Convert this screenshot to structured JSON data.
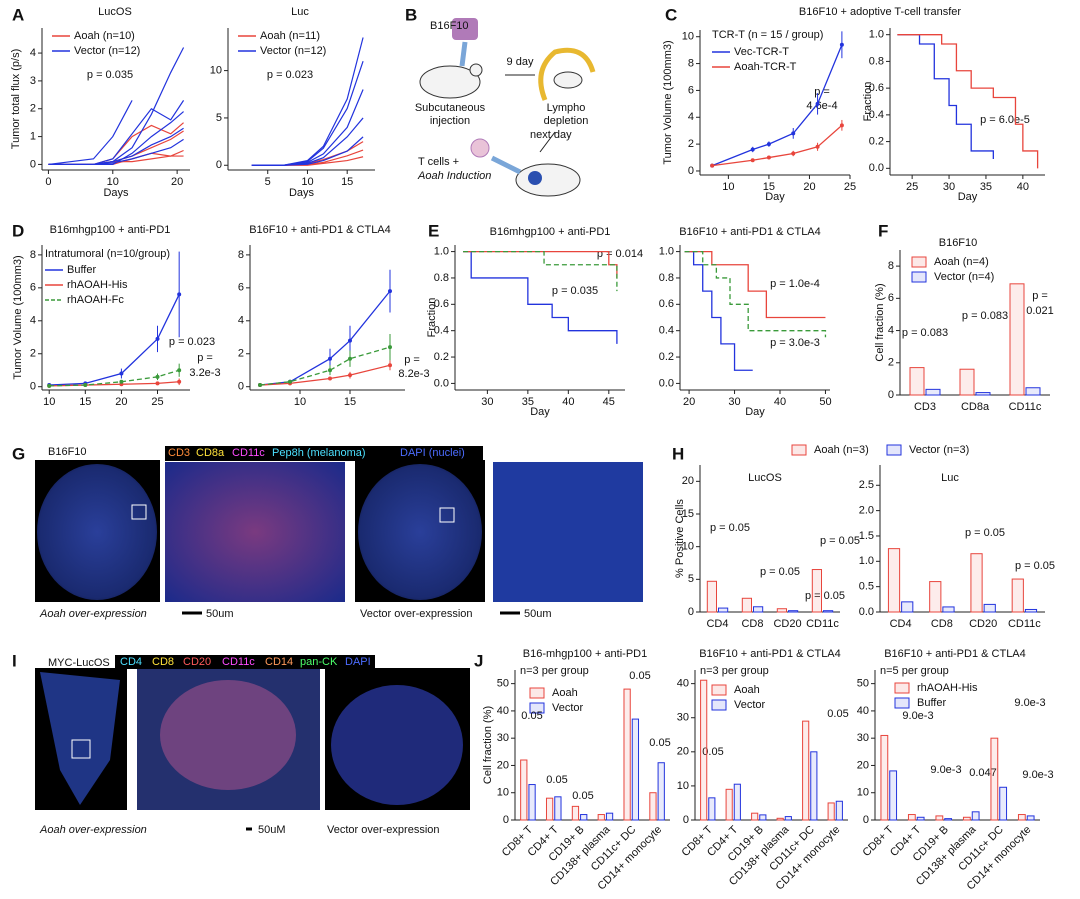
{
  "panel_letters": [
    "A",
    "B",
    "C",
    "D",
    "E",
    "F",
    "G",
    "H",
    "I",
    "J"
  ],
  "diagram_b": {
    "cell_line": "B16F10",
    "interval": "9 day",
    "step1": [
      "Subcutaneous",
      "injection"
    ],
    "step2": [
      "Lympho",
      "depletion"
    ],
    "next": "next day",
    "step3": [
      "T cells +",
      "Aoah Induction"
    ]
  },
  "image_g": {
    "title": "B16F10",
    "channels": [
      "CD3",
      "CD8a",
      "CD11c",
      "Pep8h (melanoma)",
      "DAPI (nuclei)"
    ],
    "left_caption": "Aoah over-expression",
    "left_scale": "50um",
    "right_caption": "Vector over-expression",
    "right_scale": "50um"
  },
  "image_i": {
    "title": "MYC-LucOS",
    "channels": [
      "CD4",
      "CD8",
      "CD20",
      "CD11c",
      "CD14",
      "pan-CK",
      "DAPI"
    ],
    "left_caption": "Aoah over-expression",
    "scale": "50uM",
    "right_caption": "Vector over-expression"
  },
  "chart_data": [
    {
      "type": "line",
      "title": "LucOS",
      "ylabel": "Tumor total flux (p/s)",
      "xlabel": "Days",
      "x": [
        0,
        7,
        10,
        13,
        16,
        19,
        21
      ],
      "xlim": [
        -1,
        22
      ],
      "xticks": [
        0,
        10,
        20
      ],
      "ylim": [
        -0.2,
        4.9
      ],
      "yticks": [
        0,
        1,
        2,
        3,
        4
      ],
      "legend": [
        {
          "name": "Aoah (n=10)",
          "color": "#e8453c"
        },
        {
          "name": "Vector (n=12)",
          "color": "#2233dd"
        }
      ],
      "lines": [
        {
          "color": "#e8453c",
          "values": [
            0,
            0,
            0.2,
            1.0,
            1.4,
            1.1,
            1.5
          ]
        },
        {
          "color": "#e8453c",
          "values": [
            0,
            0,
            0.1,
            0.3,
            0.6,
            0.9,
            1.2
          ]
        },
        {
          "color": "#e8453c",
          "values": [
            0,
            0,
            0,
            0.2,
            0.4,
            0.3,
            0.5
          ]
        },
        {
          "color": "#e8453c",
          "values": [
            0,
            0,
            0.1,
            0.1,
            0.2,
            0.3,
            0.3
          ]
        },
        {
          "color": "#2233dd",
          "values": [
            0,
            0,
            0.1,
            0.6,
            1.8,
            3.3,
            4.2
          ]
        },
        {
          "color": "#2233dd",
          "values": [
            0,
            0,
            0.2,
            1.1,
            2.0,
            1.6,
            2.3
          ]
        },
        {
          "color": "#2233dd",
          "values": [
            0,
            0.2,
            1.0,
            2.3,
            null,
            null,
            null
          ]
        },
        {
          "color": "#2233dd",
          "values": [
            0,
            0,
            0,
            0.4,
            1.0,
            1.5,
            1.9
          ]
        },
        {
          "color": "#2233dd",
          "values": [
            0,
            0,
            0.1,
            0.3,
            0.7,
            1.0,
            1.3
          ]
        },
        {
          "color": "#2233dd",
          "values": [
            0,
            0,
            0.05,
            0.2,
            0.4,
            0.6,
            0.9
          ]
        }
      ],
      "annotations": [
        "p = 0.035"
      ]
    },
    {
      "type": "line",
      "title": "Luc",
      "xlabel": "Days",
      "x": [
        3,
        7,
        10,
        12,
        15,
        17
      ],
      "xlim": [
        0,
        18.5
      ],
      "xticks": [
        5,
        10,
        15
      ],
      "ylim": [
        -0.5,
        14.5
      ],
      "yticks": [
        0,
        5,
        10
      ],
      "legend": [
        {
          "name": "Aoah (n=11)",
          "color": "#e8453c"
        },
        {
          "name": "Vector (n=12)",
          "color": "#2233dd"
        }
      ],
      "lines": [
        {
          "color": "#e8453c",
          "values": [
            0,
            0,
            0.2,
            0.6,
            1.5,
            2.5
          ]
        },
        {
          "color": "#e8453c",
          "values": [
            0,
            0,
            0.1,
            0.3,
            1.0,
            1.6
          ]
        },
        {
          "color": "#e8453c",
          "values": [
            0,
            0,
            0,
            0.2,
            0.5,
            0.9
          ]
        },
        {
          "color": "#2233dd",
          "values": [
            0,
            0,
            0.5,
            2,
            7,
            13.5
          ]
        },
        {
          "color": "#2233dd",
          "values": [
            0,
            0,
            0.4,
            1.8,
            6,
            11
          ]
        },
        {
          "color": "#2233dd",
          "values": [
            0,
            0,
            0.3,
            1.2,
            4,
            8
          ]
        },
        {
          "color": "#2233dd",
          "values": [
            0,
            0,
            0.2,
            0.8,
            3,
            5
          ]
        },
        {
          "color": "#2233dd",
          "values": [
            0,
            0,
            0.1,
            0.5,
            1.5,
            3
          ]
        }
      ],
      "annotations": [
        "p = 0.023"
      ]
    },
    {
      "type": "line",
      "title": "B16F10 + adoptive T-cell transfer",
      "subtitle": "TCR-T (n = 15 / group)",
      "ylabel": "Tumor Volume (100mm3)",
      "xlabel": "Day",
      "x": [
        8,
        13,
        15,
        18,
        21,
        24
      ],
      "xlim": [
        6.5,
        25
      ],
      "xticks": [
        10,
        15,
        20,
        25
      ],
      "ylim": [
        -0.3,
        10.5
      ],
      "yticks": [
        0,
        2,
        4,
        6,
        8,
        10
      ],
      "series": [
        {
          "name": "Vec-TCR-T",
          "color": "#2233dd",
          "values": [
            0.4,
            1.6,
            2.0,
            2.8,
            5.0,
            9.4
          ],
          "errors": [
            0.1,
            0.2,
            0.2,
            0.4,
            0.8,
            1.0
          ]
        },
        {
          "name": "Aoah-TCR-T",
          "color": "#e8453c",
          "values": [
            0.4,
            0.8,
            1.0,
            1.3,
            1.8,
            3.4
          ],
          "errors": [
            0.05,
            0.1,
            0.1,
            0.2,
            0.3,
            0.4
          ]
        }
      ],
      "annotations": [
        "p =",
        "4.6e-4"
      ]
    },
    {
      "type": "step",
      "ylabel": "Fraction",
      "xlabel": "Day",
      "xlim": [
        22,
        43
      ],
      "xticks": [
        25,
        30,
        35,
        40
      ],
      "ylim": [
        -0.05,
        1.05
      ],
      "yticks": [
        {
          "value": 0,
          "label": "0.0"
        },
        0.2,
        0.4,
        0.6,
        0.8,
        {
          "value": 1,
          "label": "1.0"
        }
      ],
      "series": [
        {
          "color": "#2233dd",
          "x": [
            23,
            26,
            28,
            30,
            31,
            33,
            36
          ],
          "values": [
            1,
            0.93,
            0.67,
            0.47,
            0.33,
            0.13,
            0.07
          ]
        },
        {
          "color": "#e8453c",
          "x": [
            23,
            28,
            29,
            31,
            33,
            36,
            39,
            40,
            42
          ],
          "values": [
            1,
            1,
            0.93,
            0.73,
            0.6,
            0.53,
            0.33,
            0.13,
            0
          ]
        }
      ],
      "annotations": [
        "p = 6.0e-5"
      ]
    },
    {
      "type": "line",
      "title": "B16mhgp100 + anti-PD1",
      "subtitle": "Intratumoral (n=10/group)",
      "ylabel": "Tumor Volume (100mm3)",
      "x": [
        10,
        15,
        20,
        25,
        28
      ],
      "xlim": [
        9,
        29.5
      ],
      "xticks": [
        10,
        15,
        20,
        25
      ],
      "ylim": [
        -0.2,
        8.6
      ],
      "yticks": [
        0,
        2,
        4,
        6,
        8
      ],
      "series": [
        {
          "name": "Buffer",
          "color": "#2233dd",
          "values": [
            0.1,
            0.2,
            0.8,
            2.9,
            5.6
          ],
          "errors": [
            0.05,
            0.1,
            0.3,
            0.8,
            2.6
          ]
        },
        {
          "name": "rhAOAH-His",
          "color": "#e8453c",
          "values": [
            0.05,
            0.1,
            0.15,
            0.2,
            0.3
          ],
          "errors": [
            0.02,
            0.05,
            0.05,
            0.1,
            0.2
          ]
        },
        {
          "name": "rhAOAH-Fc",
          "color": "#3a9a3a",
          "dash": true,
          "values": [
            0.05,
            0.1,
            0.3,
            0.6,
            1.0
          ],
          "errors": [
            0.02,
            0.05,
            0.1,
            0.2,
            0.4
          ]
        }
      ],
      "annotations": [
        "p = 0.023",
        "p =",
        "3.2e-3"
      ]
    },
    {
      "type": "line",
      "title": "B16F10 + anti-PD1 & CTLA4",
      "x": [
        6,
        9,
        13,
        15,
        19
      ],
      "xlim": [
        5,
        20.5
      ],
      "xticks": [
        10,
        15
      ],
      "ylim": [
        -0.2,
        8.6
      ],
      "yticks": [
        0,
        2,
        4,
        6,
        8
      ],
      "series": [
        {
          "color": "#2233dd",
          "values": [
            0.1,
            0.3,
            1.7,
            2.8,
            5.8
          ],
          "errors": [
            0.05,
            0.1,
            0.6,
            0.9,
            1.3
          ]
        },
        {
          "color": "#e8453c",
          "values": [
            0.1,
            0.2,
            0.5,
            0.7,
            1.3
          ],
          "errors": [
            0.03,
            0.05,
            0.1,
            0.2,
            0.3
          ]
        },
        {
          "color": "#3a9a3a",
          "dash": true,
          "values": [
            0.1,
            0.3,
            1.0,
            1.7,
            2.4
          ],
          "errors": [
            0.03,
            0.1,
            0.3,
            0.5,
            0.8
          ]
        }
      ],
      "annotations": [
        "p =",
        "8.2e-3"
      ]
    },
    {
      "type": "step",
      "title": "B16mhgp100 + anti-PD1",
      "ylabel": "Fraction",
      "xlabel": "Day",
      "xlim": [
        26,
        47
      ],
      "xticks": [
        30,
        35,
        40,
        45
      ],
      "ylim": [
        -0.05,
        1.05
      ],
      "yticks": [
        {
          "value": 0,
          "label": "0.0"
        },
        0.2,
        0.4,
        0.6,
        0.8,
        {
          "value": 1,
          "label": "1.0"
        }
      ],
      "series": [
        {
          "color": "#2233dd",
          "x": [
            27,
            28,
            35,
            38,
            40,
            46
          ],
          "values": [
            1,
            0.8,
            0.6,
            0.5,
            0.4,
            0.3
          ]
        },
        {
          "color": "#e8453c",
          "x": [
            27,
            45,
            46
          ],
          "values": [
            1,
            0.9,
            0.8
          ]
        },
        {
          "color": "#3a9a3a",
          "dash": true,
          "x": [
            27,
            37,
            39,
            46
          ],
          "values": [
            1,
            0.9,
            0.9,
            0.7
          ]
        }
      ],
      "annotations": [
        "p = 0.014",
        "p = 0.035"
      ]
    },
    {
      "type": "step",
      "title": "B16F10 + anti-PD1 & CTLA4",
      "xlabel": "Day",
      "xlim": [
        18,
        51
      ],
      "xticks": [
        20,
        30,
        40,
        50
      ],
      "ylim": [
        -0.05,
        1.05
      ],
      "yticks": [
        {
          "value": 0,
          "label": "0.0"
        },
        0.2,
        0.4,
        0.6,
        0.8,
        {
          "value": 1,
          "label": "1.0"
        }
      ],
      "series": [
        {
          "color": "#2233dd",
          "x": [
            19,
            21,
            23,
            25,
            27,
            30,
            34
          ],
          "values": [
            1,
            0.9,
            0.7,
            0.5,
            0.3,
            0.1,
            0.1
          ]
        },
        {
          "color": "#e8453c",
          "x": [
            19,
            25,
            33,
            37,
            50
          ],
          "values": [
            1,
            0.9,
            0.7,
            0.5,
            0.5
          ]
        },
        {
          "color": "#3a9a3a",
          "dash": true,
          "x": [
            19,
            23,
            26,
            29,
            33,
            50
          ],
          "values": [
            1,
            0.9,
            0.8,
            0.6,
            0.4,
            0.35
          ]
        }
      ],
      "annotations": [
        "p = 1.0e-4",
        "p = 3.0e-3"
      ]
    },
    {
      "type": "bar",
      "title": "B16F10",
      "ylabel": "Cell fraction (%)",
      "categories": [
        "CD3",
        "CD8a",
        "CD11c"
      ],
      "ylim": [
        0,
        9
      ],
      "yticks": [
        0,
        2,
        4,
        6,
        8
      ],
      "series": [
        {
          "name": "Aoah (n=4)",
          "color": "#e8453c",
          "values": [
            1.7,
            1.6,
            6.9
          ]
        },
        {
          "name": "Vector (n=4)",
          "color": "#2233dd",
          "values": [
            0.35,
            0.15,
            0.45
          ]
        }
      ],
      "annotations": [
        "p = 0.083",
        "p = 0.083",
        "p =",
        "0.021"
      ]
    },
    {
      "type": "bar",
      "title": "LucOS",
      "ylabel": "% Positive Cells",
      "categories": [
        "CD4",
        "CD8",
        "CD20",
        "CD11c"
      ],
      "ylim": [
        0,
        22.5
      ],
      "yticks": [
        0,
        5,
        10,
        15,
        20
      ],
      "series": [
        {
          "name": "Aoah (n=3)",
          "color": "#e8453c",
          "values": [
            4.7,
            2.1,
            0.5,
            6.5
          ]
        },
        {
          "name": "Vector (n=3)",
          "color": "#2233dd",
          "values": [
            0.6,
            0.8,
            0.2,
            0.2
          ]
        }
      ],
      "annotations": [
        "p = 0.05",
        "p = 0.05",
        "p = 0.05",
        "p = 0.05"
      ]
    },
    {
      "type": "bar",
      "title": "Luc",
      "categories": [
        "CD4",
        "CD8",
        "CD20",
        "CD11c"
      ],
      "ylim": [
        0,
        2.9
      ],
      "yticks": [
        {
          "value": 0,
          "label": "0.0"
        },
        0.5,
        {
          "value": 1,
          "label": "1.0"
        },
        1.5,
        {
          "value": 2,
          "label": "2.0"
        },
        2.5
      ],
      "series": [
        {
          "color": "#e8453c",
          "values": [
            1.25,
            0.6,
            1.15,
            0.65
          ]
        },
        {
          "color": "#2233dd",
          "values": [
            0.2,
            0.1,
            0.15,
            0.05
          ]
        }
      ],
      "annotations": [
        "p = 0.05",
        "p = 0.05"
      ]
    },
    {
      "type": "bar",
      "title": "B16-mhgp100 + anti-PD1",
      "subtitle": "n=3 per group",
      "ylabel": "Cell fraction (%)",
      "categories": [
        "CD8+ T",
        "CD4+ T",
        "CD19+ B",
        "CD138+ plasma",
        "CD11c+ DC",
        "CD14+ monocyte"
      ],
      "ylim": [
        0,
        55
      ],
      "yticks": [
        0,
        10,
        20,
        30,
        40,
        50
      ],
      "series": [
        {
          "name": "Aoah",
          "color": "#e8453c",
          "values": [
            22,
            8,
            5,
            2,
            48,
            10
          ]
        },
        {
          "name": "Vector",
          "color": "#2233dd",
          "values": [
            13,
            8.5,
            2,
            2.5,
            37,
            21
          ]
        }
      ],
      "annotations": [
        "0.05",
        "0.05",
        "0.05",
        "0.05",
        "0.05"
      ]
    },
    {
      "type": "bar",
      "title": "B16F10 + anti-PD1 & CTLA4",
      "subtitle": "n=3 per group",
      "categories": [
        "CD8+ T",
        "CD4+ T",
        "CD19+ B",
        "CD138+ plasma",
        "CD11c+ DC",
        "CD14+ monocyte"
      ],
      "ylim": [
        0,
        44
      ],
      "yticks": [
        0,
        10,
        20,
        30,
        40
      ],
      "series": [
        {
          "name": "Aoah",
          "color": "#e8453c",
          "values": [
            41,
            9,
            2,
            0.5,
            29,
            5
          ]
        },
        {
          "name": "Vector",
          "color": "#2233dd",
          "values": [
            6.5,
            10.5,
            1.5,
            1,
            20,
            5.5
          ]
        }
      ],
      "annotations": [
        "0.05",
        "0.05"
      ]
    },
    {
      "type": "bar",
      "title": "B16F10 + anti-PD1 & CTLA4",
      "subtitle": "n=5 per group",
      "categories": [
        "CD8+ T",
        "CD4+ T",
        "CD19+ B",
        "CD138+ plasma",
        "CD11c+ DC",
        "CD14+ monocyte"
      ],
      "ylim": [
        0,
        55
      ],
      "yticks": [
        0,
        10,
        20,
        30,
        40,
        50
      ],
      "series": [
        {
          "name": "rhAOAH-His",
          "color": "#e8453c",
          "values": [
            31,
            2,
            1.5,
            1,
            30,
            2
          ]
        },
        {
          "name": "Buffer",
          "color": "#2233dd",
          "values": [
            18,
            1,
            0.5,
            3,
            12,
            1.5
          ]
        }
      ],
      "annotations": [
        "9.0e-3",
        "9.0e-3",
        "0.047",
        "9.0e-3",
        "9.0e-3"
      ]
    }
  ]
}
